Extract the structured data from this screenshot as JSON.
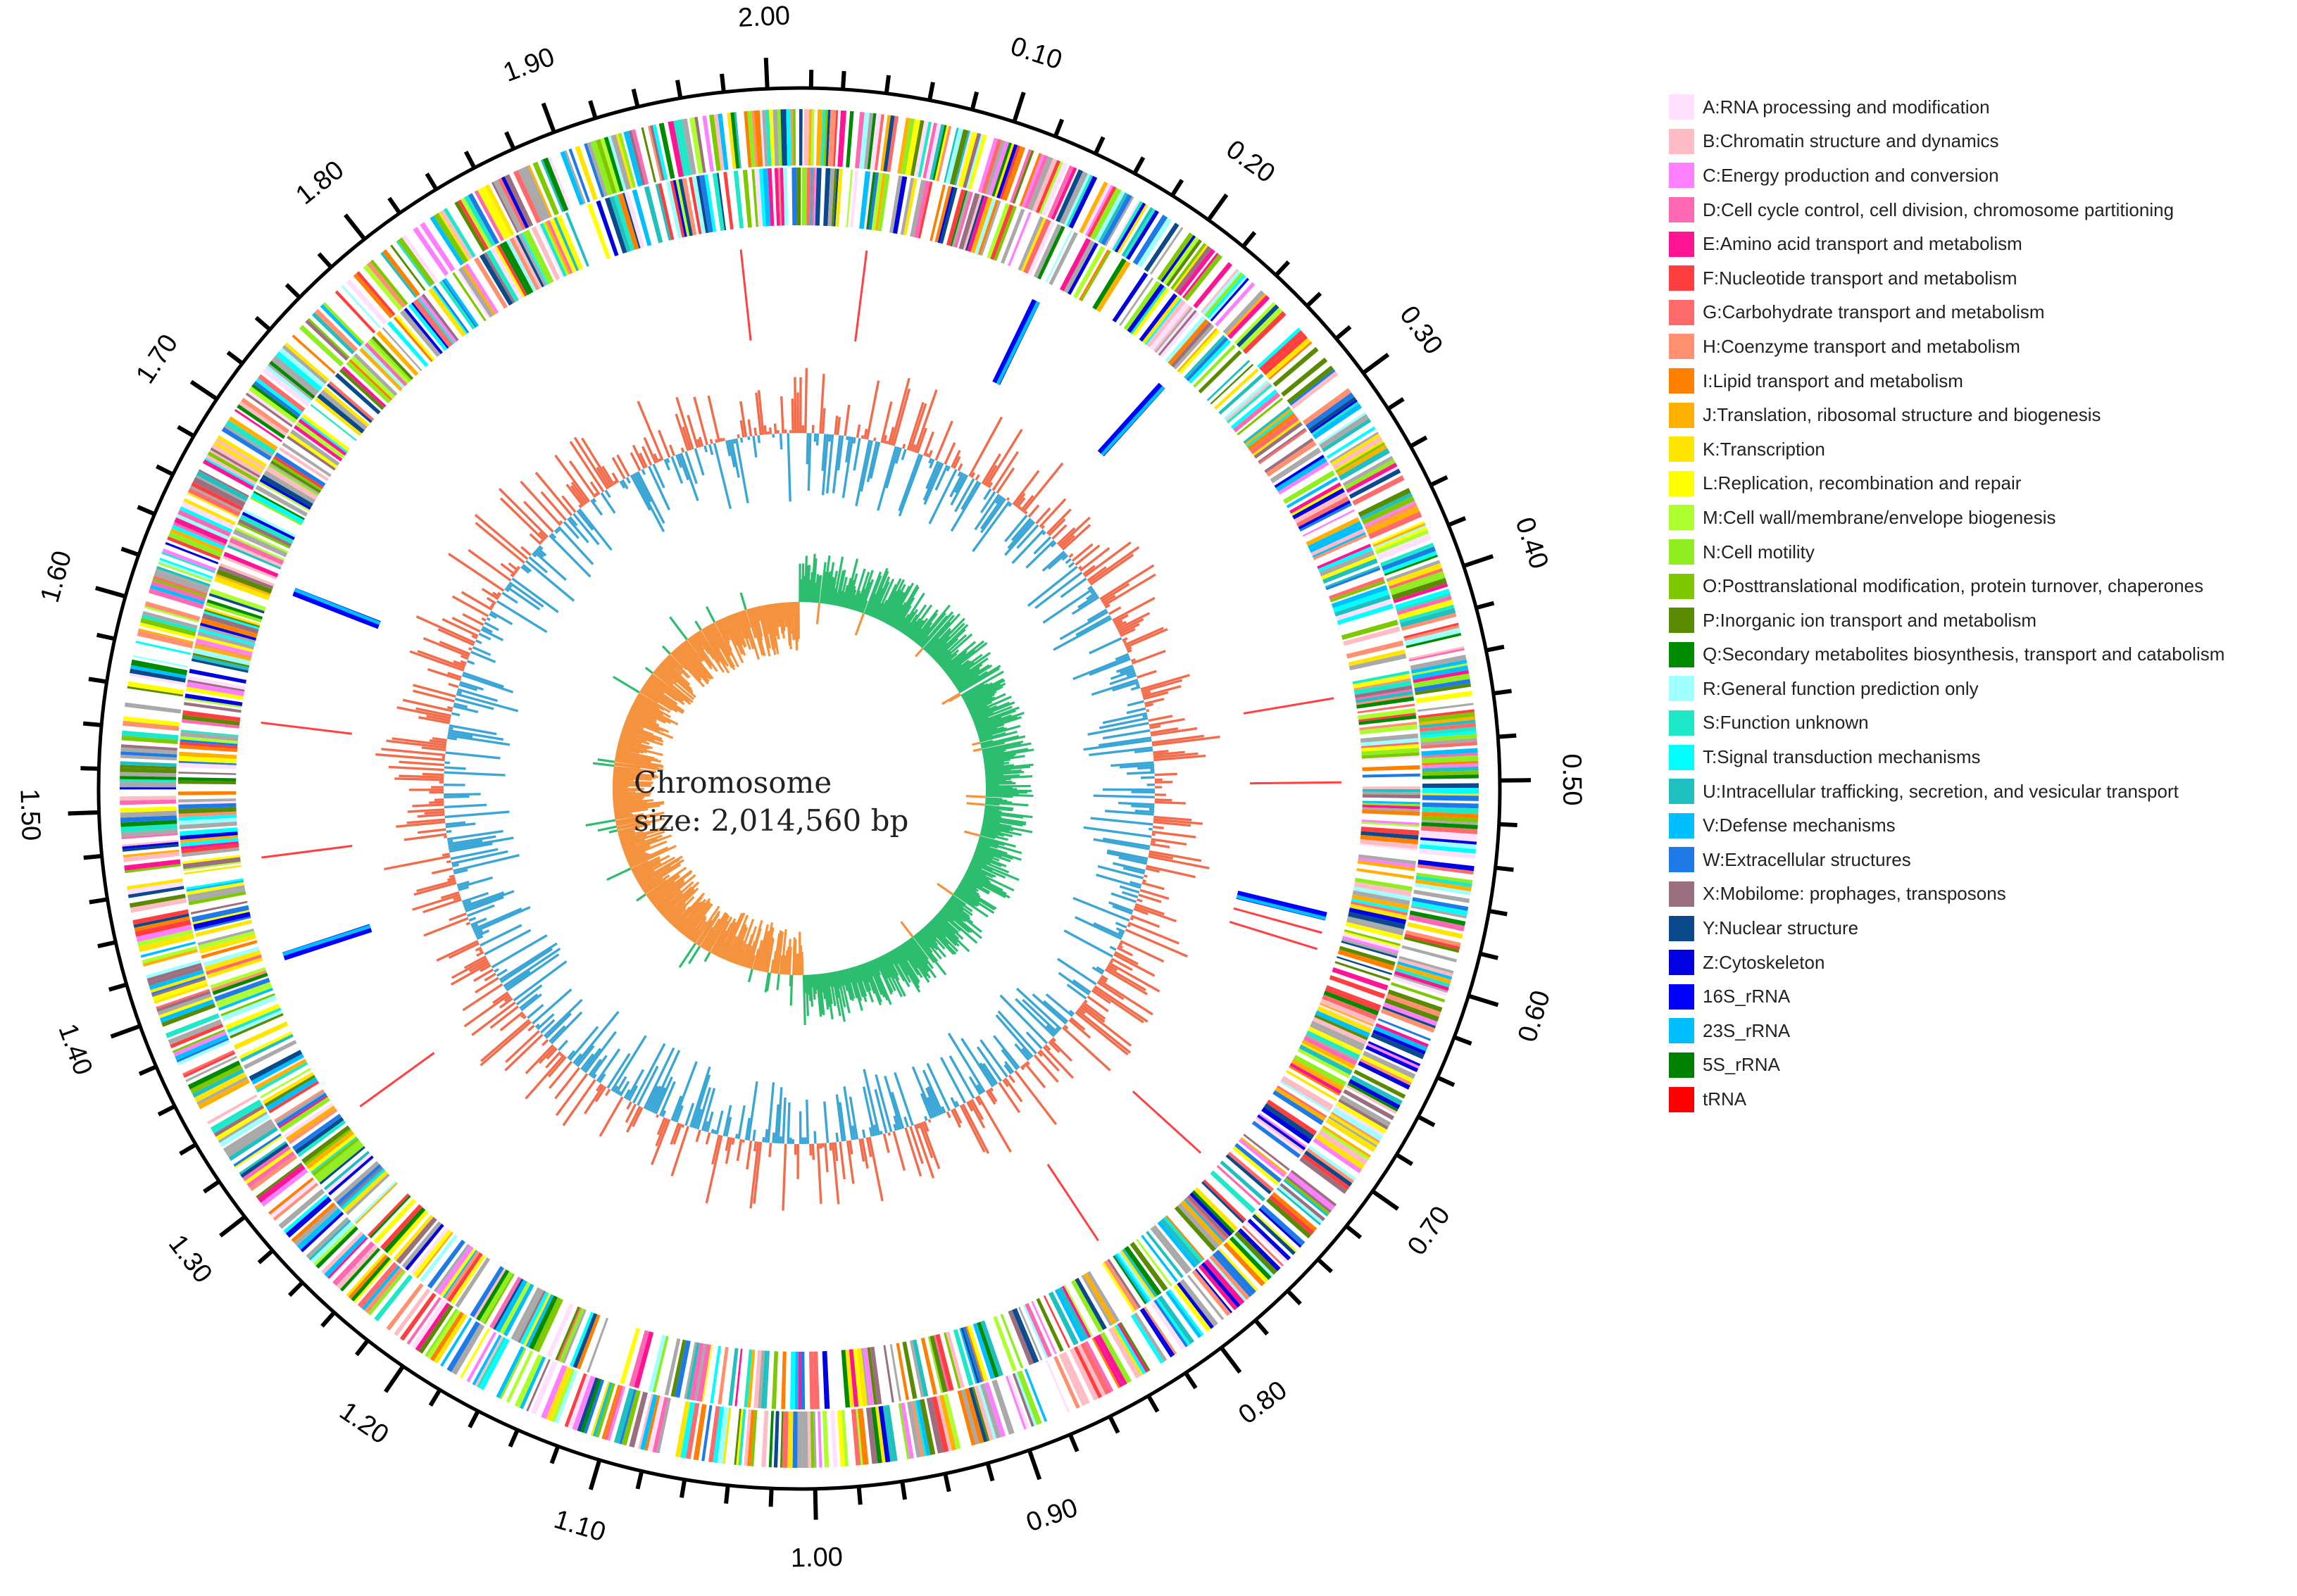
{
  "chart_data": {
    "type": "circular-genome-map",
    "title": "Chromosome",
    "subtitle": "size: 2,014,560 bp",
    "genome_size_bp": 2014560,
    "axis": {
      "unit": "Mb",
      "range": [
        0,
        2.0146
      ],
      "major_ticks": [
        "0.10",
        "0.20",
        "0.30",
        "0.40",
        "0.50",
        "0.60",
        "0.70",
        "0.80",
        "0.90",
        "1.00",
        "1.10",
        "1.20",
        "1.30",
        "1.40",
        "1.50",
        "1.60",
        "1.70",
        "1.80",
        "1.90",
        "2.00"
      ],
      "minor_tick_step": 0.02
    },
    "tracks": [
      "COG categories (forward strand)",
      "COG categories (reverse strand)",
      "rRNA / tRNA",
      "GC content",
      "GC skew"
    ],
    "rRNA_positions_mb": [
      0.145,
      0.235,
      0.58,
      1.41,
      1.63
    ],
    "tRNA_positions_mb": [
      0.04,
      0.45,
      0.5,
      0.59,
      0.6,
      0.74,
      0.82,
      1.31,
      1.47,
      1.55,
      1.98
    ],
    "gc_skew_positive_region_mb": [
      0,
      1.0
    ],
    "colors": {
      "gc_high": "#f26b4b",
      "gc_low": "#3aa6d6",
      "skew_positive": "#2dbd6e",
      "skew_negative": "#f5923e"
    },
    "legend": [
      {
        "label": "A:RNA processing and modification",
        "color": "#ffe0ff"
      },
      {
        "label": "B:Chromatin structure and dynamics",
        "color": "#ffbcc4"
      },
      {
        "label": "C:Energy production and conversion",
        "color": "#ff80ff"
      },
      {
        "label": "D:Cell cycle control, cell division, chromosome partitioning",
        "color": "#ff69b4"
      },
      {
        "label": "E:Amino acid transport and metabolism",
        "color": "#ff1493"
      },
      {
        "label": "F:Nucleotide transport and metabolism",
        "color": "#ff3f3f"
      },
      {
        "label": "G:Carbohydrate transport and metabolism",
        "color": "#ff6a6a"
      },
      {
        "label": "H:Coenzyme transport and metabolism",
        "color": "#ff9070"
      },
      {
        "label": "I:Lipid transport and metabolism",
        "color": "#ff7f00"
      },
      {
        "label": "J:Translation, ribosomal structure and biogenesis",
        "color": "#ffb000"
      },
      {
        "label": "K:Transcription",
        "color": "#ffe600"
      },
      {
        "label": "L:Replication, recombination and repair",
        "color": "#ffff00"
      },
      {
        "label": "M:Cell wall/membrane/envelope biogenesis",
        "color": "#adff2f"
      },
      {
        "label": "N:Cell motility",
        "color": "#90ee20"
      },
      {
        "label": "O:Posttranslational modification, protein turnover, chaperones",
        "color": "#7ec800"
      },
      {
        "label": "P:Inorganic ion transport and metabolism",
        "color": "#5a8a00"
      },
      {
        "label": "Q:Secondary metabolites biosynthesis, transport and catabolism",
        "color": "#008a00"
      },
      {
        "label": "R:General function prediction only",
        "color": "#a0ffff"
      },
      {
        "label": "S:Function unknown",
        "color": "#1de8c8"
      },
      {
        "label": "T:Signal transduction mechanisms",
        "color": "#00ffff"
      },
      {
        "label": "U:Intracellular trafficking, secretion, and vesicular transport",
        "color": "#20c0c0"
      },
      {
        "label": "V:Defense mechanisms",
        "color": "#00bfff"
      },
      {
        "label": "W:Extracellular structures",
        "color": "#1e7ae6"
      },
      {
        "label": "X:Mobilome: prophages, transposons",
        "color": "#9a7080"
      },
      {
        "label": "Y:Nuclear structure",
        "color": "#0a4a8c"
      },
      {
        "label": "Z:Cytoskeleton",
        "color": "#0000e0"
      },
      {
        "label": "16S_rRNA",
        "color": "#0000ff"
      },
      {
        "label": "23S_rRNA",
        "color": "#00bfff"
      },
      {
        "label": "5S_rRNA",
        "color": "#008000"
      },
      {
        "label": "tRNA",
        "color": "#ff0000"
      }
    ]
  }
}
